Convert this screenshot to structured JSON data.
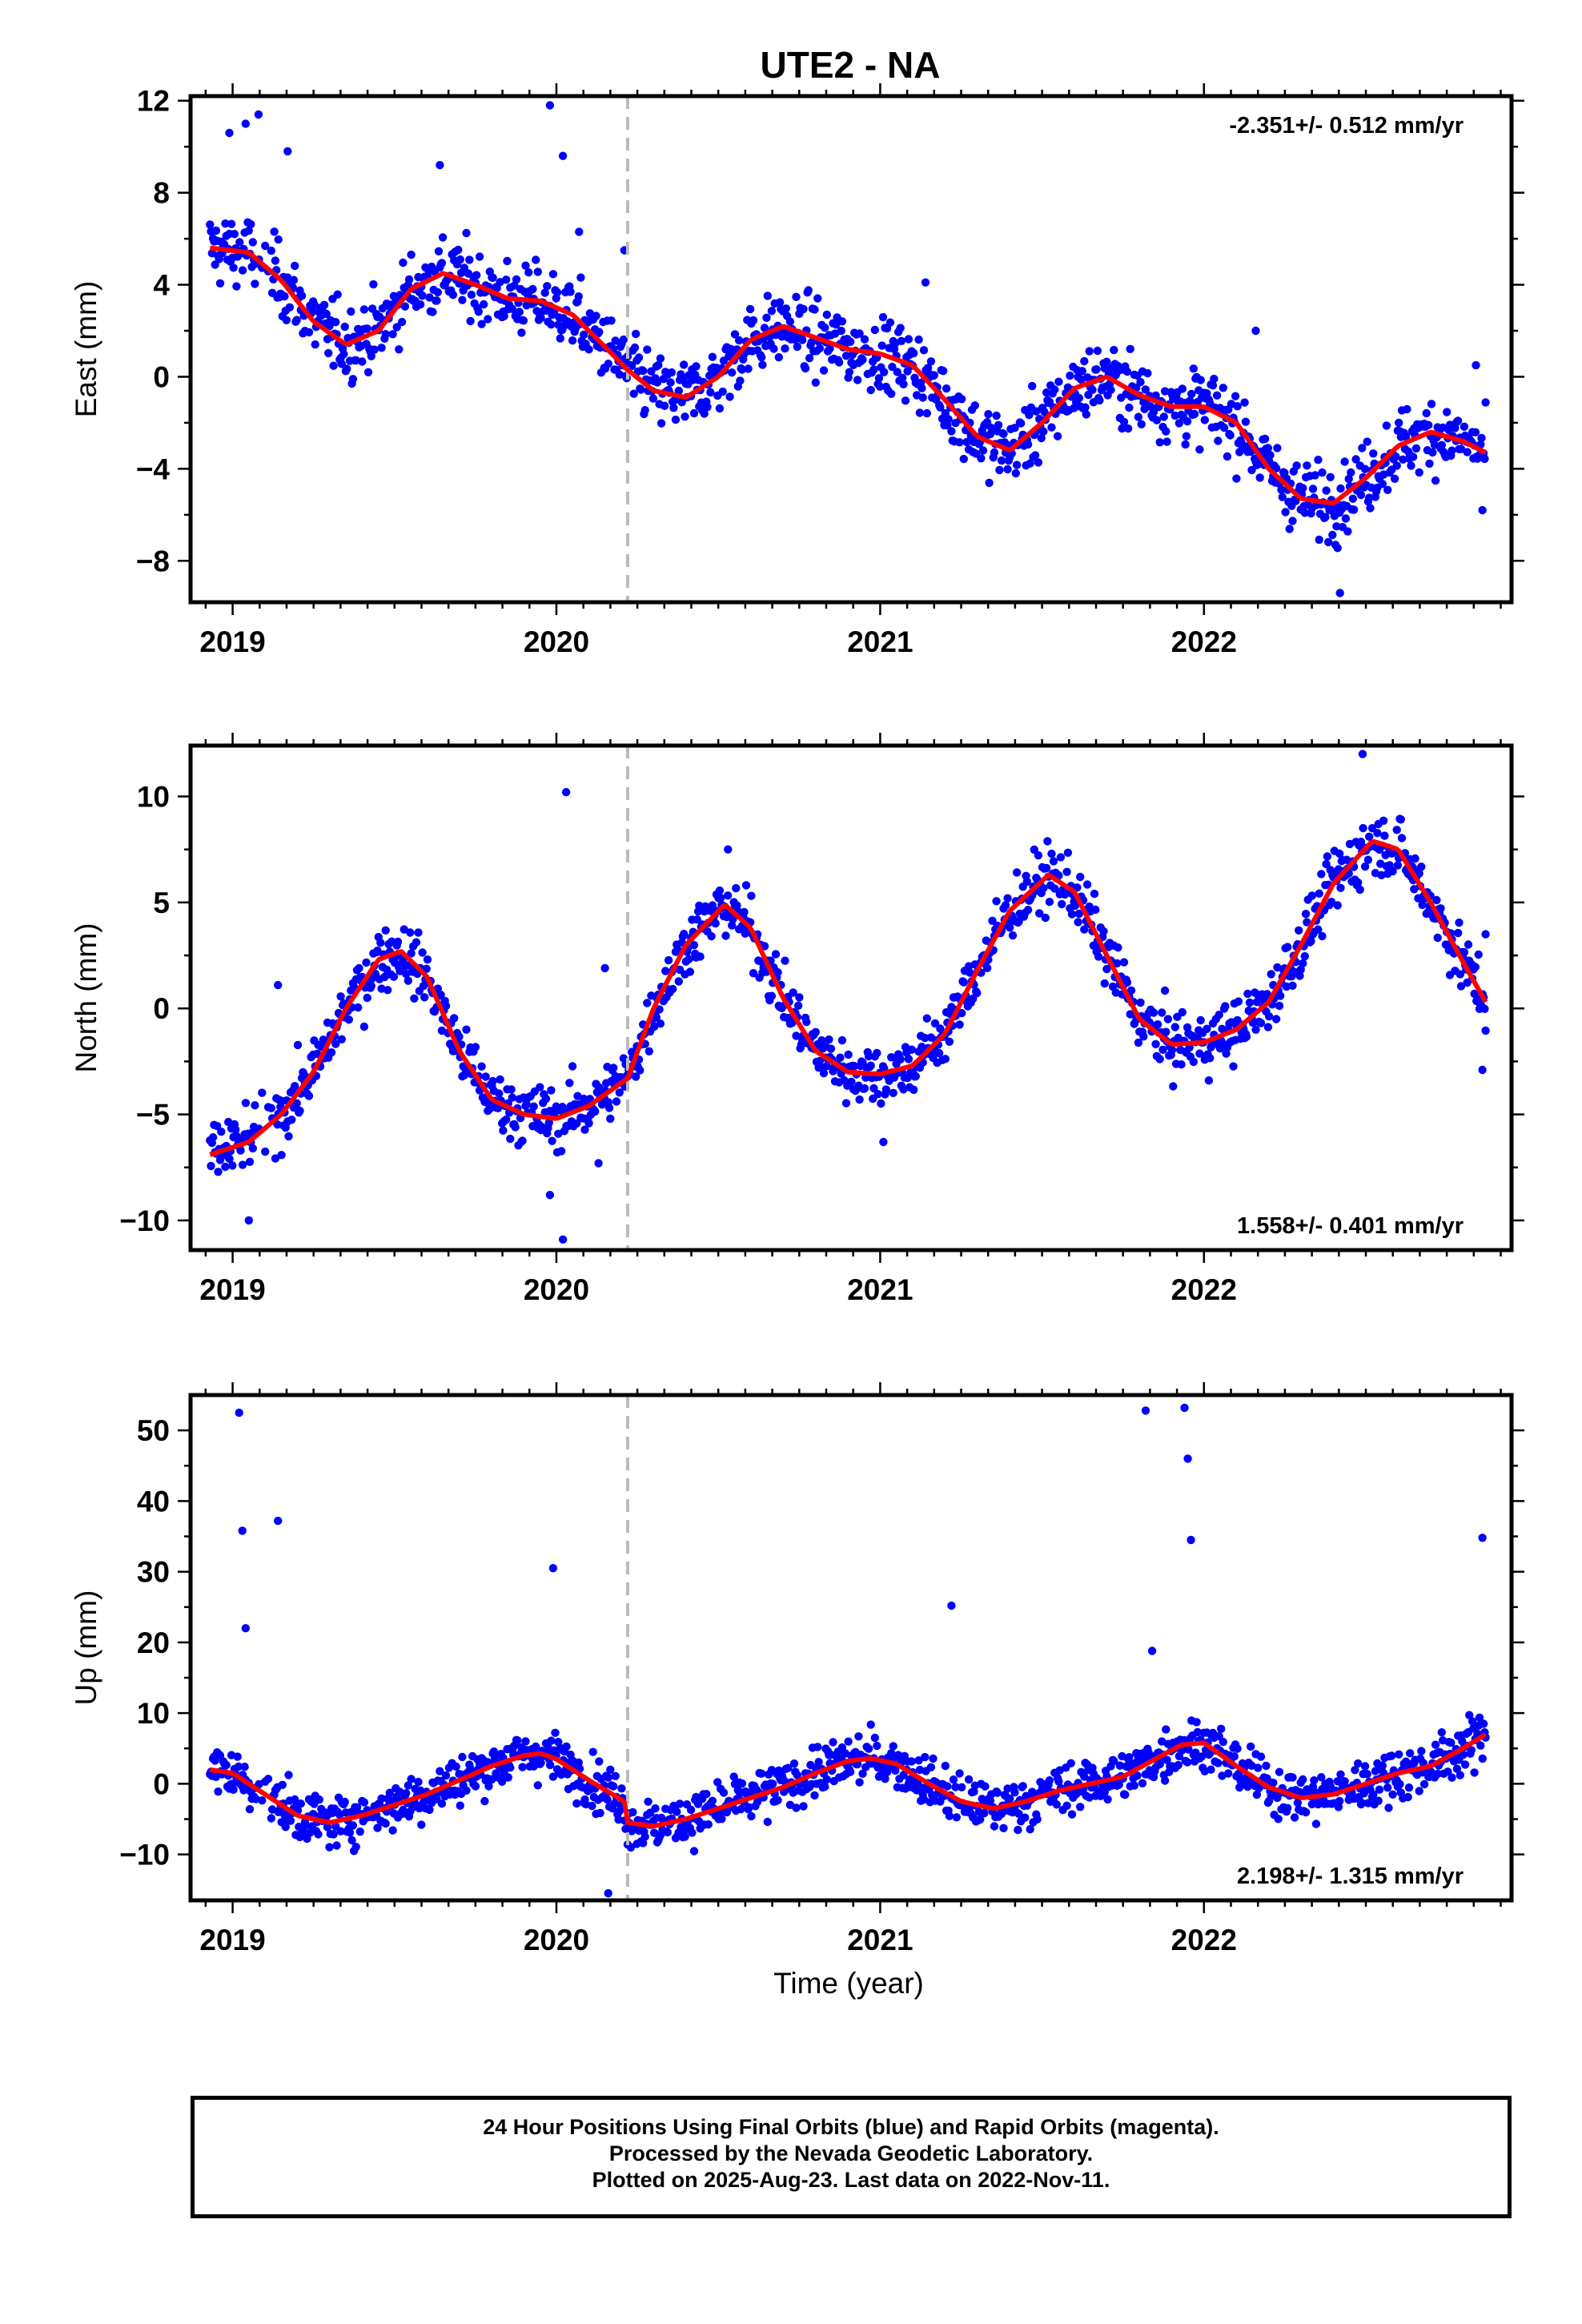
{
  "title": "UTE2 - NA",
  "colors": {
    "points": "#0000ff",
    "model": "#ff0000",
    "event_line": "#bbbbbb",
    "frame": "#000000"
  },
  "xlabel": "Time (year)",
  "footer": {
    "line1": "24 Hour Positions Using Final Orbits (blue) and Rapid Orbits (magenta).",
    "line2": "Processed by the Nevada Geodetic Laboratory.",
    "line3": "Plotted on 2025-Aug-23. Last data on 2022-Nov-11."
  },
  "chart_data": [
    {
      "type": "scatter",
      "component": "East",
      "ylabel": "East (mm)",
      "rate_label": "-2.351+/- 0.512 mm/yr",
      "xlim": [
        2018.87,
        2022.95
      ],
      "ylim": [
        -9.8,
        12.2
      ],
      "xticks": [
        2019,
        2020,
        2021,
        2022
      ],
      "yticks": [
        -8,
        -4,
        0,
        4,
        8,
        12
      ],
      "event_line_x": 2020.22,
      "model_series": {
        "name": "",
        "x": [
          2018.93,
          2019.05,
          2019.15,
          2019.25,
          2019.35,
          2019.45,
          2019.55,
          2019.65,
          2019.75,
          2019.85,
          2019.95,
          2020.05,
          2020.15,
          2020.22,
          2020.3,
          2020.4,
          2020.5,
          2020.6,
          2020.7,
          2020.8,
          2020.9,
          2021.0,
          2021.1,
          2021.2,
          2021.3,
          2021.4,
          2021.5,
          2021.6,
          2021.7,
          2021.8,
          2021.9,
          2022.0,
          2022.1,
          2022.2,
          2022.3,
          2022.4,
          2022.5,
          2022.6,
          2022.7,
          2022.8,
          2022.87
        ],
        "y": [
          5.6,
          5.4,
          4.2,
          2.4,
          1.4,
          2.0,
          3.8,
          4.5,
          4.0,
          3.4,
          3.3,
          2.7,
          1.3,
          0.3,
          -0.6,
          -0.9,
          0.0,
          1.6,
          2.2,
          1.7,
          1.2,
          1.0,
          0.5,
          -1.0,
          -2.6,
          -3.2,
          -2.0,
          -0.5,
          0.0,
          -0.8,
          -1.3,
          -1.3,
          -2.0,
          -4.0,
          -5.3,
          -5.5,
          -4.4,
          -3.0,
          -2.4,
          -2.8,
          -3.3
        ]
      },
      "scatter_spread": 1.5,
      "outliers": {
        "x": [
          2018.99,
          2019.04,
          2019.08,
          2019.17,
          2019.64,
          2019.98,
          2020.02,
          2020.07,
          2020.21,
          2021.14,
          2021.31,
          2022.16,
          2022.42,
          2022.84,
          2022.86
        ],
        "y": [
          10.6,
          11.0,
          11.4,
          9.8,
          9.2,
          11.8,
          9.6,
          6.3,
          5.5,
          4.1,
          -2.6,
          2.0,
          -9.4,
          0.5,
          -5.8
        ]
      }
    },
    {
      "type": "scatter",
      "component": "North",
      "ylabel": "North (mm)",
      "rate_label": "1.558+/- 0.401 mm/yr",
      "xlim": [
        2018.87,
        2022.95
      ],
      "ylim": [
        -11.4,
        12.4
      ],
      "xticks": [
        2019,
        2020,
        2021,
        2022
      ],
      "yticks": [
        -10,
        -5,
        0,
        5,
        10
      ],
      "event_line_x": 2020.22,
      "model_series": {
        "name": "",
        "x": [
          2018.93,
          2019.05,
          2019.15,
          2019.25,
          2019.35,
          2019.45,
          2019.52,
          2019.6,
          2019.7,
          2019.8,
          2019.9,
          2020.0,
          2020.1,
          2020.22,
          2020.3,
          2020.4,
          2020.52,
          2020.6,
          2020.7,
          2020.8,
          2020.9,
          2021.0,
          2021.1,
          2021.2,
          2021.3,
          2021.4,
          2021.52,
          2021.6,
          2021.7,
          2021.8,
          2021.9,
          2022.0,
          2022.1,
          2022.2,
          2022.3,
          2022.4,
          2022.52,
          2022.6,
          2022.7,
          2022.8,
          2022.87
        ],
        "y": [
          -6.9,
          -6.3,
          -5.0,
          -3.0,
          0.0,
          2.3,
          2.7,
          1.5,
          -2.0,
          -4.3,
          -5.0,
          -5.2,
          -4.6,
          -3.3,
          0.0,
          3.0,
          4.9,
          3.8,
          0.5,
          -2.0,
          -3.0,
          -3.1,
          -2.7,
          -1.2,
          1.8,
          4.6,
          6.3,
          5.5,
          2.5,
          -0.5,
          -1.7,
          -1.6,
          -1.0,
          0.3,
          3.0,
          5.9,
          7.9,
          7.5,
          5.0,
          2.2,
          0.3
        ]
      },
      "scatter_spread": 1.4,
      "outliers": {
        "x": [
          2019.05,
          2019.14,
          2019.98,
          2020.03,
          2020.02,
          2020.13,
          2020.15,
          2020.53,
          2021.01,
          2022.49,
          2022.86,
          2022.87
        ],
        "y": [
          -10.0,
          1.1,
          -8.8,
          10.2,
          -10.9,
          -7.3,
          1.9,
          7.5,
          -6.3,
          12.0,
          -2.9,
          3.5
        ]
      }
    },
    {
      "type": "scatter",
      "component": "Up",
      "ylabel": "Up (mm)",
      "rate_label": "2.198+/- 1.315 mm/yr",
      "xlim": [
        2018.87,
        2022.95
      ],
      "ylim": [
        -16.5,
        55
      ],
      "xticks": [
        2019,
        2020,
        2021,
        2022
      ],
      "yticks": [
        -10,
        0,
        10,
        20,
        30,
        40,
        50
      ],
      "event_line_x": 2020.22,
      "model_series": {
        "name": "",
        "x": [
          2018.93,
          2019.0,
          2019.1,
          2019.2,
          2019.3,
          2019.4,
          2019.5,
          2019.6,
          2019.7,
          2019.8,
          2019.9,
          2019.95,
          2020.0,
          2020.1,
          2020.21,
          2020.22,
          2020.3,
          2020.4,
          2020.5,
          2020.6,
          2020.7,
          2020.8,
          2020.9,
          2020.97,
          2021.05,
          2021.15,
          2021.25,
          2021.35,
          2021.45,
          2021.55,
          2021.65,
          2021.75,
          2021.85,
          2021.93,
          2022.0,
          2022.1,
          2022.2,
          2022.3,
          2022.4,
          2022.5,
          2022.6,
          2022.7,
          2022.8,
          2022.87
        ],
        "y": [
          2.0,
          1.5,
          -1.5,
          -4.5,
          -5.5,
          -4.5,
          -3.0,
          -1.5,
          0.5,
          2.5,
          4.0,
          4.3,
          3.5,
          0.5,
          -2.5,
          -5.5,
          -6.0,
          -5.0,
          -3.5,
          -2.0,
          -0.5,
          1.5,
          3.2,
          3.6,
          2.8,
          0.0,
          -2.5,
          -3.5,
          -2.5,
          -1.0,
          0.0,
          1.0,
          3.5,
          5.5,
          5.8,
          2.5,
          -0.5,
          -2.0,
          -1.5,
          0.0,
          1.5,
          2.5,
          5.0,
          7.0
        ]
      },
      "scatter_spread": 3.4,
      "outliers": {
        "x": [
          2019.02,
          2019.03,
          2019.04,
          2019.14,
          2019.99,
          2020.16,
          2021.22,
          2021.82,
          2021.84,
          2021.94,
          2021.95,
          2021.96,
          2022.86
        ],
        "y": [
          52.5,
          35.8,
          22.0,
          37.2,
          30.5,
          -15.5,
          25.2,
          52.8,
          18.8,
          53.2,
          46.0,
          34.5,
          34.8
        ]
      }
    }
  ]
}
